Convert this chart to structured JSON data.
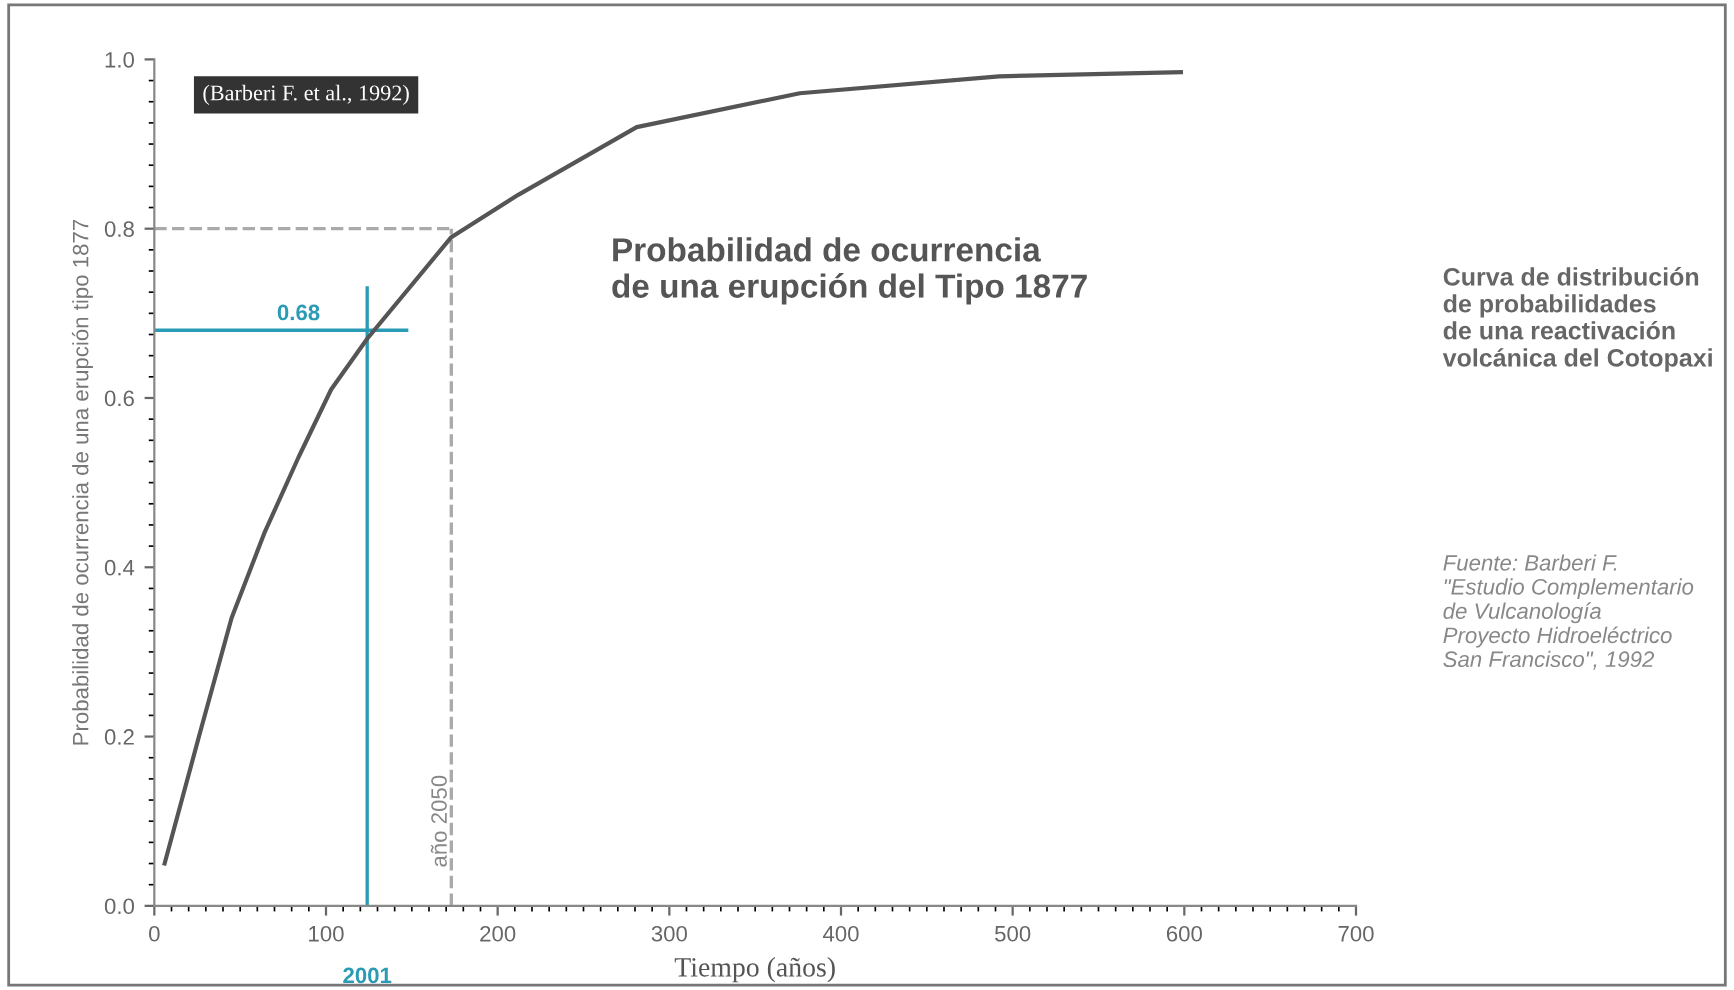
{
  "chart_data": {
    "type": "line",
    "title": "Probabilidad de ocurrencia\nde una erupción del Tipo 1877",
    "subtitle": "Curva de distribución\nde probabilidades\nde una reactivación\nvolcánica del Cotopaxi",
    "xlabel": "Tiempo (años)",
    "ylabel": "Probabilidad de ocurrencia de una erupción tipo 1877",
    "annotations": [
      "(Barberi F. et al., 1992)",
      "Fuente: Barberi F.\n\"Estudio Complementario\nde Vulcanología\nProyecto Hidroeléctrico\nSan Francisco\", 1992",
      {
        "text": "2001",
        "x": 124,
        "y": 0
      },
      {
        "text": "año 2050",
        "x": 173,
        "y": 0.1
      }
    ],
    "x": [
      6,
      26,
      45,
      64,
      84,
      103,
      124,
      173,
      212,
      281,
      376,
      492,
      598
    ],
    "series": [
      {
        "color": "#555555",
        "values": [
          0.05,
          0.2,
          0.34,
          0.44,
          0.53,
          0.61,
          0.67,
          0.79,
          0.84,
          0.92,
          0.96,
          0.98,
          0.985
        ]
      }
    ],
    "xlim": [
      0,
      700
    ],
    "xticks": [
      0,
      100,
      200,
      300,
      400,
      500,
      600,
      700
    ],
    "ylim": [
      0,
      1
    ],
    "yticks": [
      {
        "value": 0,
        "label": "0.0"
      },
      0.2,
      0.4,
      0.6,
      0.8,
      {
        "value": 1,
        "label": "1.0"
      }
    ],
    "ref_lines": [
      {
        "axis": "y",
        "value": 0.68,
        "label": "0.68",
        "color": "#2a9bb5",
        "line_style": "solid"
      },
      {
        "axis": "x",
        "value": 124,
        "color": "#2a9bb5",
        "line_style": "solid"
      },
      {
        "axis": "y",
        "value": 0.8,
        "color": "#aaaaaa",
        "line_style": "dashed"
      },
      {
        "axis": "x",
        "value": 173,
        "color": "#aaaaaa",
        "line_style": "dashed"
      }
    ],
    "grid": false,
    "legend": false,
    "marker": "none",
    "line_style": "solid"
  }
}
